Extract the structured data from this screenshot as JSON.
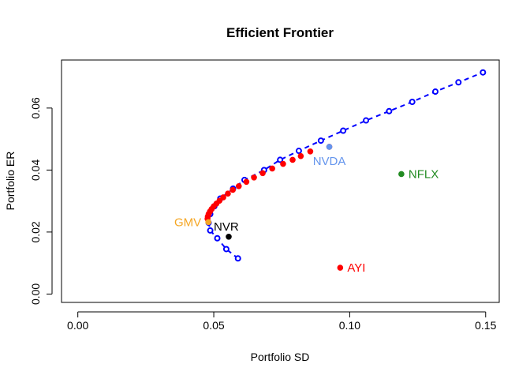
{
  "chart_data": {
    "type": "scatter",
    "title": "Efficient Frontier",
    "xlabel": "Portfolio SD",
    "ylabel": "Portfolio ER",
    "xlim": [
      -0.006,
      0.155
    ],
    "ylim": [
      -0.0027,
      0.0755
    ],
    "x_ticks": [
      0.0,
      0.05,
      0.1,
      0.15
    ],
    "x_tick_labels": [
      "0.00",
      "0.05",
      "0.10",
      "0.15"
    ],
    "y_ticks": [
      0.0,
      0.02,
      0.04,
      0.06
    ],
    "y_tick_labels": [
      "0.00",
      "0.02",
      "0.04",
      "0.06"
    ],
    "grid": false,
    "colors": {
      "frontier": "#0000ff",
      "tangency_frontier": "#ff0000",
      "gmv": "#f5a623",
      "nvr": "#000000",
      "nvda": "#6495ed",
      "nflx": "#228b22",
      "ayi": "#ff0000"
    },
    "series": [
      {
        "name": "",
        "style": "open-circles-dashed",
        "color": "#0000ff",
        "points": [
          [
            0.0589,
            0.0115
          ],
          [
            0.0546,
            0.0145
          ],
          [
            0.0513,
            0.018
          ],
          [
            0.0487,
            0.0205
          ],
          [
            0.0481,
            0.023
          ],
          [
            0.0487,
            0.0258
          ],
          [
            0.0502,
            0.0283
          ],
          [
            0.0524,
            0.0308
          ],
          [
            0.0571,
            0.034
          ],
          [
            0.0613,
            0.0368
          ],
          [
            0.0685,
            0.04
          ],
          [
            0.0744,
            0.0433
          ],
          [
            0.0813,
            0.0462
          ],
          [
            0.0894,
            0.0495
          ],
          [
            0.0976,
            0.0527
          ],
          [
            0.106,
            0.056
          ],
          [
            0.1145,
            0.059
          ],
          [
            0.123,
            0.062
          ],
          [
            0.1315,
            0.0653
          ],
          [
            0.14,
            0.0683
          ],
          [
            0.149,
            0.0715
          ]
        ]
      },
      {
        "name": "",
        "style": "filled-circles",
        "color": "#ff0000",
        "points": [
          [
            0.0477,
            0.0243
          ],
          [
            0.0478,
            0.025
          ],
          [
            0.0481,
            0.0258
          ],
          [
            0.0486,
            0.0266
          ],
          [
            0.0492,
            0.0274
          ],
          [
            0.05,
            0.0283
          ],
          [
            0.051,
            0.0292
          ],
          [
            0.0521,
            0.0301
          ],
          [
            0.0535,
            0.0312
          ],
          [
            0.0552,
            0.0324
          ],
          [
            0.057,
            0.0336
          ],
          [
            0.0592,
            0.0348
          ],
          [
            0.062,
            0.0362
          ],
          [
            0.0648,
            0.0376
          ],
          [
            0.068,
            0.039
          ],
          [
            0.0715,
            0.0405
          ],
          [
            0.0755,
            0.042
          ],
          [
            0.079,
            0.0433
          ],
          [
            0.082,
            0.0445
          ],
          [
            0.0855,
            0.046
          ],
          [
            0.0925,
            0.0475
          ]
        ]
      }
    ],
    "labeled_points": [
      {
        "label": "GMV",
        "x": 0.048,
        "y": 0.0232,
        "color": "#f5a623",
        "label_side": "left"
      },
      {
        "label": "NVR",
        "x": 0.0555,
        "y": 0.0185,
        "color": "#000000",
        "label_side": "top-left"
      },
      {
        "label": "NVDA",
        "x": 0.0925,
        "y": 0.0475,
        "color": "#6495ed",
        "label_side": "below"
      },
      {
        "label": "NFLX",
        "x": 0.119,
        "y": 0.0387,
        "color": "#228b22",
        "label_side": "right"
      },
      {
        "label": "AYI",
        "x": 0.0965,
        "y": 0.0085,
        "color": "#ff0000",
        "label_side": "right"
      }
    ]
  }
}
